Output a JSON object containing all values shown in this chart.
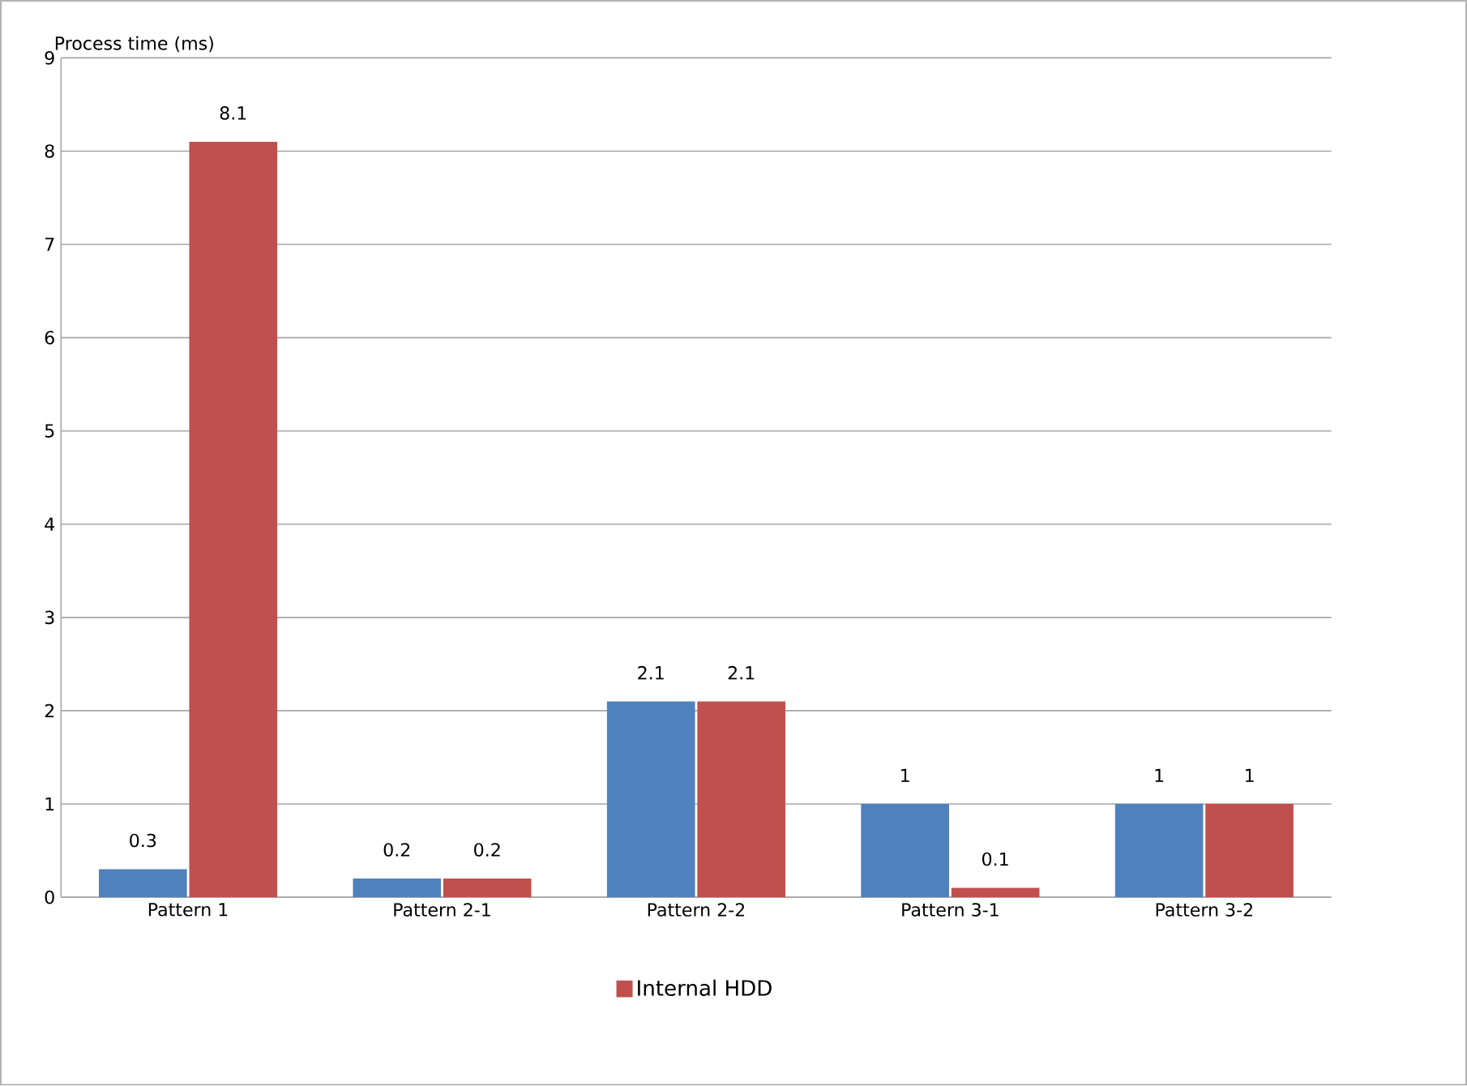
{
  "chart_data": {
    "type": "bar",
    "ylabel": "Process time (ms)",
    "categories": [
      "Pattern 1",
      "Pattern 2-1",
      "Pattern 2-2",
      "Pattern 3-1",
      "Pattern 3-2"
    ],
    "series": [
      {
        "color": "#4f81bd",
        "values": [
          0.3,
          0.2,
          2.1,
          1,
          1
        ]
      },
      {
        "name": "Internal HDD",
        "color": "#c0504d",
        "values": [
          8.1,
          0.2,
          2.1,
          0.1,
          1
        ]
      }
    ],
    "ylim": [
      0,
      9
    ],
    "yticks": [
      0,
      1,
      2,
      3,
      4,
      5,
      6,
      7,
      8,
      9
    ],
    "grid": "y",
    "legend": "bottom",
    "data_labels": true
  }
}
